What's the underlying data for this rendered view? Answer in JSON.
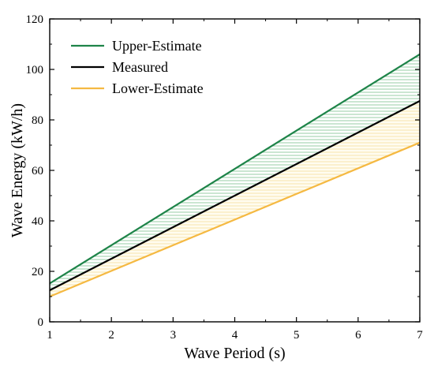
{
  "chart_data": {
    "type": "line",
    "xlabel": "Wave Period (s)",
    "ylabel": "Wave Energy (kW/h)",
    "xlim": [
      1,
      7
    ],
    "ylim": [
      0,
      120
    ],
    "xticks": [
      "1",
      "2",
      "3",
      "4",
      "5",
      "6",
      "7"
    ],
    "yticks": [
      "0",
      "20",
      "40",
      "60",
      "80",
      "100",
      "120"
    ],
    "x": [
      1,
      7
    ],
    "series": [
      {
        "name": "Upper-Estimate",
        "values": [
          15.2,
          106.0
        ],
        "color": "#1e8449"
      },
      {
        "name": "Measured",
        "values": [
          12.5,
          87.5
        ],
        "color": "#000000"
      },
      {
        "name": "Lower-Estimate",
        "values": [
          10.0,
          71.0
        ],
        "color": "#f5b942"
      }
    ],
    "bands": [
      {
        "between": [
          "Upper-Estimate",
          "Measured"
        ],
        "color": "#2e9c55",
        "pattern": "horizontal-hatch"
      },
      {
        "between": [
          "Measured",
          "Lower-Estimate"
        ],
        "color": "#f2cc6b",
        "pattern": "horizontal-hatch"
      }
    ],
    "legend_position": "top-left",
    "grid": false
  }
}
